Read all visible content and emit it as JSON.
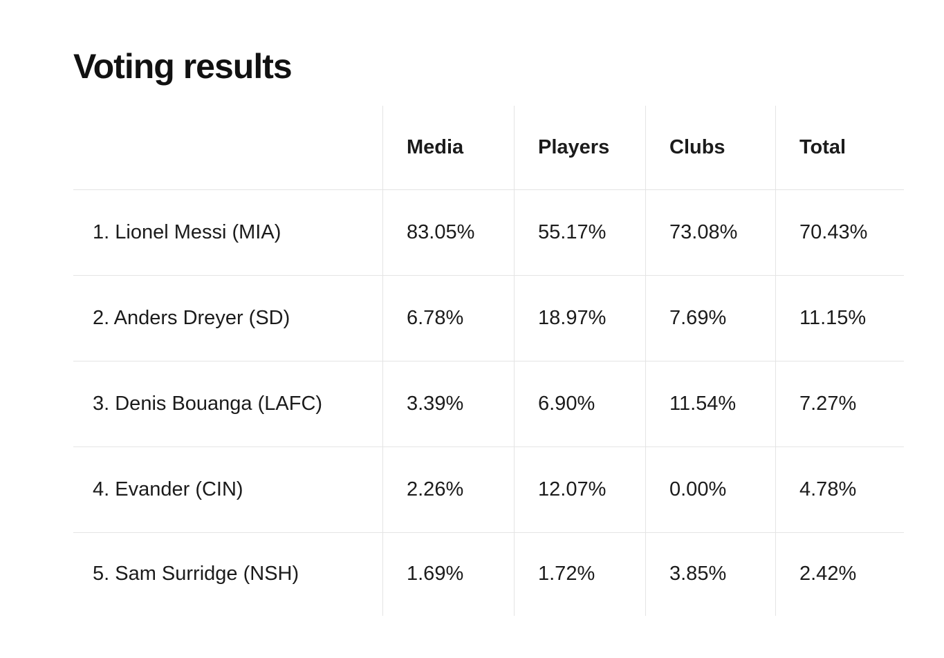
{
  "title": "Voting results",
  "colors": {
    "background": "#ffffff",
    "text": "#1b1b1b",
    "grid_line": "#e4e4e4"
  },
  "table": {
    "headers": [
      "Media",
      "Players",
      "Clubs",
      "Total"
    ],
    "rows": [
      {
        "player": "1. Lionel Messi (MIA)",
        "media": "83.05%",
        "players": "55.17%",
        "clubs": "73.08%",
        "total": "70.43%"
      },
      {
        "player": "2. Anders Dreyer (SD)",
        "media": "6.78%",
        "players": "18.97%",
        "clubs": "7.69%",
        "total": "11.15%"
      },
      {
        "player": "3. Denis Bouanga (LAFC)",
        "media": "3.39%",
        "players": "6.90%",
        "clubs": "11.54%",
        "total": "7.27%"
      },
      {
        "player": "4. Evander (CIN)",
        "media": "2.26%",
        "players": "12.07%",
        "clubs": "0.00%",
        "total": "4.78%"
      },
      {
        "player": "5. Sam Surridge (NSH)",
        "media": "1.69%",
        "players": "1.72%",
        "clubs": "3.85%",
        "total": "2.42%"
      }
    ]
  },
  "chart_data": {
    "type": "table",
    "title": "Voting results",
    "unit": "%",
    "columns": [
      "Player",
      "Media",
      "Players",
      "Clubs",
      "Total"
    ],
    "rows": [
      [
        "1. Lionel Messi (MIA)",
        83.05,
        55.17,
        73.08,
        70.43
      ],
      [
        "2. Anders Dreyer (SD)",
        6.78,
        18.97,
        7.69,
        11.15
      ],
      [
        "3. Denis Bouanga (LAFC)",
        3.39,
        6.9,
        11.54,
        7.27
      ],
      [
        "4. Evander (CIN)",
        2.26,
        12.07,
        0.0,
        4.78
      ],
      [
        "5. Sam Surridge (NSH)",
        1.69,
        1.72,
        3.85,
        2.42
      ]
    ]
  }
}
